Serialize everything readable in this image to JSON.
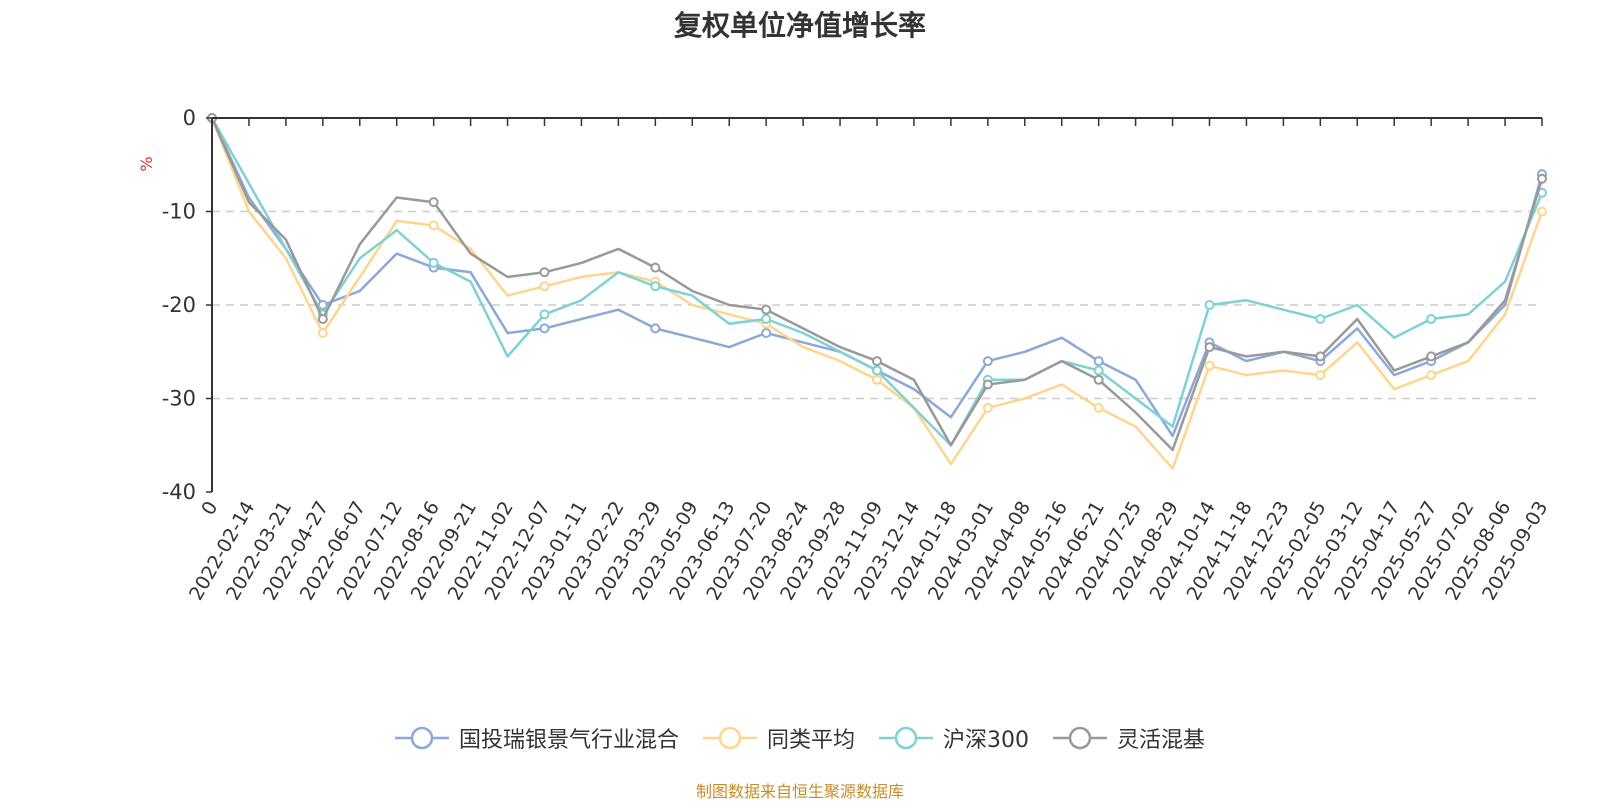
{
  "chart_data": {
    "type": "line",
    "title": "复权单位净值增长率",
    "ylabel": "%",
    "xlabel": "",
    "ylim": [
      -40,
      0
    ],
    "yticks": [
      0,
      -10,
      -20,
      -30,
      -40
    ],
    "grid": true,
    "legend_position": "bottom-center",
    "x_ticks": [
      "0",
      "2022-02-14",
      "2022-03-21",
      "2022-04-27",
      "2022-06-07",
      "2022-07-12",
      "2022-08-16",
      "2022-09-21",
      "2022-11-02",
      "2022-12-07",
      "2023-01-11",
      "2023-02-22",
      "2023-03-29",
      "2023-05-09",
      "2023-06-13",
      "2023-07-20",
      "2023-08-24",
      "2023-09-28",
      "2023-11-09",
      "2023-12-14",
      "2024-01-18",
      "2024-03-01",
      "2024-04-08",
      "2024-05-16",
      "2024-06-21",
      "2024-07-25",
      "2024-08-29",
      "2024-10-14",
      "2024-11-18",
      "2024-12-23",
      "2025-02-05",
      "2025-03-12",
      "2025-04-17",
      "2025-05-27",
      "2025-07-02",
      "2025-08-06",
      "2025-09-03"
    ],
    "x": [
      "0",
      "2022-02-14",
      "2022-03-21",
      "2022-04-27",
      "2022-06-07",
      "2022-07-12",
      "2022-08-16",
      "2022-09-21",
      "2022-11-02",
      "2022-12-07",
      "2023-01-11",
      "2023-02-22",
      "2023-03-29",
      "2023-05-09",
      "2023-06-13",
      "2023-07-20",
      "2023-08-24",
      "2023-09-28",
      "2023-11-09",
      "2023-12-14",
      "2024-01-18",
      "2024-03-01",
      "2024-04-08",
      "2024-05-16",
      "2024-06-21",
      "2024-07-25",
      "2024-08-29",
      "2024-10-14",
      "2024-11-18",
      "2024-12-23",
      "2025-02-05",
      "2025-03-12",
      "2025-04-17",
      "2025-05-27",
      "2025-07-02",
      "2025-08-06",
      "2025-09-03"
    ],
    "series": [
      {
        "name": "国投瑞银景气行业混合",
        "color": "#8aa8d8",
        "values": [
          0,
          -8.5,
          -14,
          -20,
          -18.5,
          -14.5,
          -16,
          -16.5,
          -23,
          -22.5,
          -21.5,
          -20.5,
          -22.5,
          -23.5,
          -24.5,
          -23,
          -24,
          -25,
          -27,
          -29,
          -32,
          -26,
          -25,
          -23.5,
          -26,
          -28,
          -34,
          -24,
          -26,
          -25,
          -26,
          -22.5,
          -27.5,
          -26,
          -24,
          -20,
          -6
        ]
      },
      {
        "name": "同类平均",
        "color": "#fdd58d",
        "values": [
          0,
          -10,
          -15,
          -23,
          -17,
          -11,
          -11.5,
          -14,
          -19,
          -18,
          -17,
          -16.5,
          -17.5,
          -20,
          -21,
          -22,
          -24.5,
          -26,
          -28,
          -31,
          -37,
          -31,
          -30,
          -28.5,
          -31,
          -33,
          -37.5,
          -26.5,
          -27.5,
          -27,
          -27.5,
          -24,
          -29,
          -27.5,
          -26,
          -21,
          -10
        ]
      },
      {
        "name": "沪深300",
        "color": "#7fd1d6",
        "values": [
          0,
          -7,
          -14,
          -21,
          -15,
          -12,
          -15.5,
          -17.5,
          -25.5,
          -21,
          -19.5,
          -16.5,
          -18,
          -19,
          -22,
          -21.5,
          -23,
          -25,
          -27,
          -31,
          -35,
          -28,
          -28,
          -26,
          -27,
          -30,
          -33,
          -20,
          -19.5,
          -20.5,
          -21.5,
          -20,
          -23.5,
          -21.5,
          -21,
          -17.5,
          -8
        ]
      },
      {
        "name": "灵活混基",
        "color": "#999999",
        "values": [
          0,
          -9,
          -13,
          -21.5,
          -13.5,
          -8.5,
          -9,
          -14.5,
          -17,
          -16.5,
          -15.5,
          -14,
          -16,
          -18.5,
          -20,
          -20.5,
          -22.5,
          -24.5,
          -26,
          -28,
          -35,
          -28.5,
          -28,
          -26,
          -28,
          -31.5,
          -35.5,
          -24.5,
          -25.5,
          -25,
          -25.5,
          -21.5,
          -27,
          -25.5,
          -24,
          -19.5,
          -6.5
        ]
      }
    ]
  },
  "legend": {
    "items": [
      "国投瑞银景气行业混合",
      "同类平均",
      "沪深300",
      "灵活混基"
    ]
  },
  "source_note": "制图数据来自恒生聚源数据库",
  "colors": {
    "axis": "#333333",
    "grid": "#cccccc",
    "ylabel": "#e03030"
  }
}
